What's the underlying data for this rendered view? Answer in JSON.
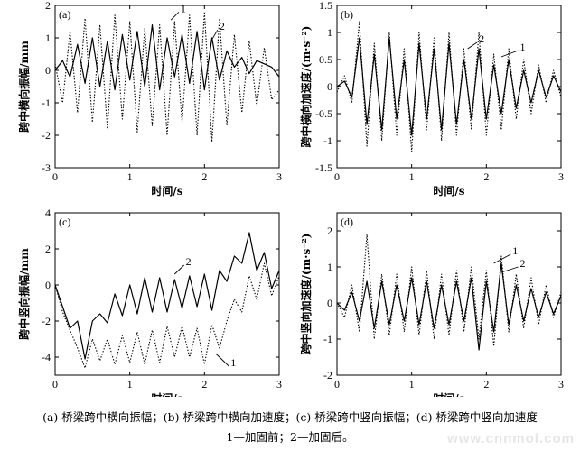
{
  "chart_data": [
    {
      "id": "a",
      "type": "line",
      "panel_label": "(a)",
      "xlabel": "时间/s",
      "ylabel": "跨中横向振幅/mm",
      "xlim": [
        0,
        3
      ],
      "ylim": [
        -3,
        2
      ],
      "xticks": [
        0,
        1,
        2,
        3
      ],
      "yticks": [
        -3,
        -2,
        -1,
        0,
        1,
        2
      ],
      "grid": false,
      "x": [
        0.0,
        0.1,
        0.2,
        0.3,
        0.4,
        0.5,
        0.6,
        0.7,
        0.8,
        0.9,
        1.0,
        1.1,
        1.2,
        1.3,
        1.4,
        1.5,
        1.6,
        1.7,
        1.8,
        1.9,
        2.0,
        2.1,
        2.2,
        2.3,
        2.4,
        2.5,
        2.6,
        2.7,
        2.8,
        2.9,
        3.0
      ],
      "series": [
        {
          "name": "1",
          "style": "dotted",
          "values": [
            0.2,
            -1.0,
            1.2,
            -1.3,
            1.6,
            -1.6,
            1.4,
            -1.8,
            1.7,
            -1.5,
            1.5,
            -1.9,
            1.3,
            -1.7,
            1.4,
            -2.0,
            1.5,
            -1.6,
            1.7,
            -2.0,
            1.8,
            -2.2,
            1.6,
            -1.7,
            1.1,
            -1.3,
            0.9,
            -1.1,
            0.7,
            -0.9,
            -0.6
          ]
        },
        {
          "name": "2",
          "style": "solid",
          "values": [
            0.0,
            0.3,
            -0.2,
            0.8,
            -0.4,
            1.0,
            -0.5,
            0.9,
            -0.6,
            1.1,
            -0.3,
            1.2,
            -0.5,
            1.4,
            -0.6,
            1.0,
            -0.2,
            1.1,
            -0.4,
            1.2,
            -0.6,
            1.0,
            -0.3,
            0.6,
            0.1,
            0.4,
            -0.1,
            0.3,
            0.2,
            0.1,
            -0.2
          ]
        }
      ],
      "annotations": [
        {
          "text": "1",
          "x": 1.55,
          "y": 1.55,
          "tx": 1.68,
          "ty": 1.85
        },
        {
          "text": "2",
          "x": 2.1,
          "y": 0.95,
          "tx": 2.2,
          "ty": 1.3
        }
      ]
    },
    {
      "id": "b",
      "type": "line",
      "panel_label": "(b)",
      "xlabel": "时间/s",
      "ylabel": "跨中横向加速度/(m·s⁻²)",
      "xlim": [
        0,
        3
      ],
      "ylim": [
        -1.5,
        1.5
      ],
      "xticks": [
        0,
        1,
        2,
        3
      ],
      "yticks": [
        -1.5,
        -1.0,
        -0.5,
        0,
        0.5,
        1.0,
        1.5
      ],
      "grid": false,
      "x": [
        0.0,
        0.1,
        0.2,
        0.3,
        0.4,
        0.5,
        0.6,
        0.7,
        0.8,
        0.9,
        1.0,
        1.1,
        1.2,
        1.3,
        1.4,
        1.5,
        1.6,
        1.7,
        1.8,
        1.9,
        2.0,
        2.1,
        2.2,
        2.3,
        2.4,
        2.5,
        2.6,
        2.7,
        2.8,
        2.9,
        3.0
      ],
      "series": [
        {
          "name": "1",
          "style": "dotted",
          "values": [
            -0.1,
            0.2,
            -0.3,
            1.2,
            -1.1,
            0.8,
            -1.0,
            1.0,
            -0.9,
            0.7,
            -1.2,
            1.0,
            -0.8,
            0.9,
            -1.0,
            1.0,
            -0.9,
            0.7,
            -0.8,
            1.0,
            -0.9,
            0.6,
            -0.8,
            0.7,
            -0.6,
            0.5,
            -0.5,
            0.4,
            -0.3,
            0.3,
            -0.2
          ]
        },
        {
          "name": "2",
          "style": "solid",
          "values": [
            0.0,
            0.1,
            -0.2,
            0.9,
            -0.7,
            0.6,
            -0.8,
            0.9,
            -0.6,
            0.5,
            -0.9,
            0.8,
            -0.6,
            0.7,
            -0.8,
            0.8,
            -0.7,
            0.5,
            -0.6,
            0.7,
            -0.6,
            0.4,
            -0.5,
            0.5,
            -0.4,
            0.3,
            -0.3,
            0.3,
            -0.2,
            0.2,
            -0.1
          ]
        }
      ],
      "annotations": [
        {
          "text": "2",
          "x": 1.75,
          "y": 0.7,
          "tx": 1.9,
          "ty": 0.85
        },
        {
          "text": "1",
          "x": 2.2,
          "y": 0.55,
          "tx": 2.45,
          "ty": 0.7
        }
      ]
    },
    {
      "id": "c",
      "type": "line",
      "panel_label": "(c)",
      "xlabel": "时间/s",
      "ylabel": "跨中竖向振幅/mm",
      "xlim": [
        0,
        3
      ],
      "ylim": [
        -5,
        4
      ],
      "xticks": [
        0,
        1,
        2,
        3
      ],
      "yticks": [
        -4,
        -2,
        0,
        2,
        4
      ],
      "grid": false,
      "x": [
        0.0,
        0.1,
        0.2,
        0.3,
        0.4,
        0.5,
        0.6,
        0.7,
        0.8,
        0.9,
        1.0,
        1.1,
        1.2,
        1.3,
        1.4,
        1.5,
        1.6,
        1.7,
        1.8,
        1.9,
        2.0,
        2.1,
        2.2,
        2.3,
        2.4,
        2.5,
        2.6,
        2.7,
        2.8,
        2.9,
        3.0
      ],
      "series": [
        {
          "name": "1",
          "style": "dotted",
          "values": [
            0.0,
            -1.5,
            -2.5,
            -3.5,
            -4.6,
            -3.0,
            -4.2,
            -3.0,
            -4.4,
            -2.8,
            -4.3,
            -2.6,
            -4.4,
            -2.5,
            -4.3,
            -2.3,
            -4.0,
            -2.3,
            -4.0,
            -2.4,
            -4.4,
            -2.2,
            -3.5,
            -2.0,
            -0.8,
            -1.5,
            0.5,
            -0.8,
            1.2,
            -0.6,
            0.5
          ]
        },
        {
          "name": "2",
          "style": "solid",
          "values": [
            0.0,
            -1.2,
            -2.4,
            -2.0,
            -4.1,
            -2.0,
            -1.6,
            -2.1,
            -0.5,
            -1.7,
            0.0,
            -1.6,
            0.4,
            -1.5,
            0.4,
            -1.5,
            0.3,
            -1.3,
            0.5,
            -1.2,
            0.6,
            -1.4,
            0.8,
            0.2,
            1.6,
            1.2,
            2.9,
            0.8,
            1.8,
            -0.2,
            0.8
          ]
        }
      ],
      "annotations": [
        {
          "text": "2",
          "x": 1.6,
          "y": 0.6,
          "tx": 1.75,
          "ty": 1.2
        },
        {
          "text": "1",
          "x": 2.15,
          "y": -3.8,
          "tx": 2.35,
          "ty": -4.4
        }
      ]
    },
    {
      "id": "d",
      "type": "line",
      "panel_label": "(d)",
      "xlabel": "时间/s",
      "ylabel": "跨中竖向加速度/(m·s⁻²)",
      "xlim": [
        0,
        3
      ],
      "ylim": [
        -2.0,
        2.5
      ],
      "xticks": [
        0,
        1,
        2,
        3
      ],
      "yticks": [
        -2.0,
        -1.0,
        0,
        1.0,
        2.0
      ],
      "grid": false,
      "x": [
        0.0,
        0.1,
        0.2,
        0.3,
        0.4,
        0.5,
        0.6,
        0.7,
        0.8,
        0.9,
        1.0,
        1.1,
        1.2,
        1.3,
        1.4,
        1.5,
        1.6,
        1.7,
        1.8,
        1.9,
        2.0,
        2.1,
        2.2,
        2.3,
        2.4,
        2.5,
        2.6,
        2.7,
        2.8,
        2.9,
        3.0
      ],
      "series": [
        {
          "name": "1",
          "style": "dotted",
          "values": [
            0.0,
            -0.4,
            0.5,
            -0.8,
            1.9,
            -1.0,
            0.8,
            -0.9,
            0.8,
            -0.8,
            1.0,
            -0.9,
            0.9,
            -1.0,
            0.8,
            -0.9,
            0.9,
            -0.8,
            1.0,
            -1.0,
            0.9,
            -1.2,
            1.3,
            -0.8,
            0.8,
            -0.7,
            0.7,
            -0.6,
            0.5,
            -0.4,
            0.3
          ]
        },
        {
          "name": "2",
          "style": "solid",
          "values": [
            0.0,
            -0.2,
            0.3,
            -0.5,
            0.6,
            -0.7,
            0.6,
            -0.6,
            0.5,
            -0.5,
            0.7,
            -0.6,
            0.6,
            -0.7,
            0.5,
            -0.6,
            0.6,
            -0.5,
            0.7,
            -1.3,
            0.6,
            -0.8,
            1.1,
            -0.6,
            0.5,
            -0.5,
            0.4,
            -0.4,
            0.3,
            -0.3,
            0.2
          ]
        }
      ],
      "annotations": [
        {
          "text": "1",
          "x": 2.1,
          "y": 1.1,
          "tx": 2.35,
          "ty": 1.4
        },
        {
          "text": "2",
          "x": 2.2,
          "y": 0.85,
          "tx": 2.45,
          "ty": 1.05
        }
      ]
    }
  ],
  "caption": {
    "line1": "(a) 桥梁跨中横向振幅；(b) 桥梁跨中横向加速度；(c) 桥梁跨中竖向振幅；(d) 桥梁跨中竖向加速度",
    "line2": "1—加固前；2—加固后。"
  },
  "watermark": "www.cnnmol.com"
}
